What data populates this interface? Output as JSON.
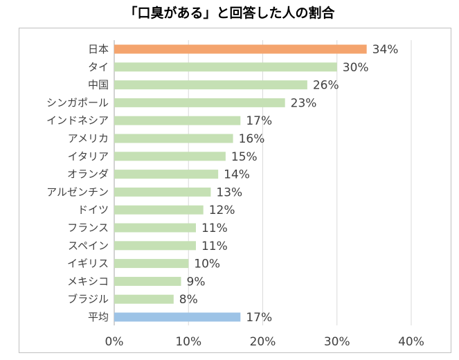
{
  "chart_data": {
    "type": "bar",
    "orientation": "horizontal",
    "title": "「口臭がある」と回答した人の割合",
    "categories": [
      "日本",
      "タイ",
      "中国",
      "シンガポール",
      "インドネシア",
      "アメリカ",
      "イタリア",
      "オランダ",
      "アルゼンチン",
      "ドイツ",
      "フランス",
      "スペイン",
      "イギリス",
      "メキシコ",
      "ブラジル",
      "平均"
    ],
    "values": [
      34,
      30,
      26,
      23,
      17,
      16,
      15,
      14,
      13,
      12,
      11,
      11,
      10,
      9,
      8,
      17
    ],
    "value_labels": [
      "34%",
      "30%",
      "26%",
      "23%",
      "17%",
      "16%",
      "15%",
      "14%",
      "13%",
      "12%",
      "11%",
      "11%",
      "10%",
      "9%",
      "8%",
      "17%"
    ],
    "bar_colors": [
      "#f4a46e",
      "#c5e0b4",
      "#c5e0b4",
      "#c5e0b4",
      "#c5e0b4",
      "#c5e0b4",
      "#c5e0b4",
      "#c5e0b4",
      "#c5e0b4",
      "#c5e0b4",
      "#c5e0b4",
      "#c5e0b4",
      "#c5e0b4",
      "#c5e0b4",
      "#c5e0b4",
      "#9dc3e6"
    ],
    "xlim": [
      0,
      40
    ],
    "xticks": [
      0,
      10,
      20,
      30,
      40
    ],
    "xtick_labels": [
      "0%",
      "10%",
      "20%",
      "30%",
      "40%"
    ],
    "grid": "vertical",
    "xlabel": "",
    "ylabel": ""
  }
}
